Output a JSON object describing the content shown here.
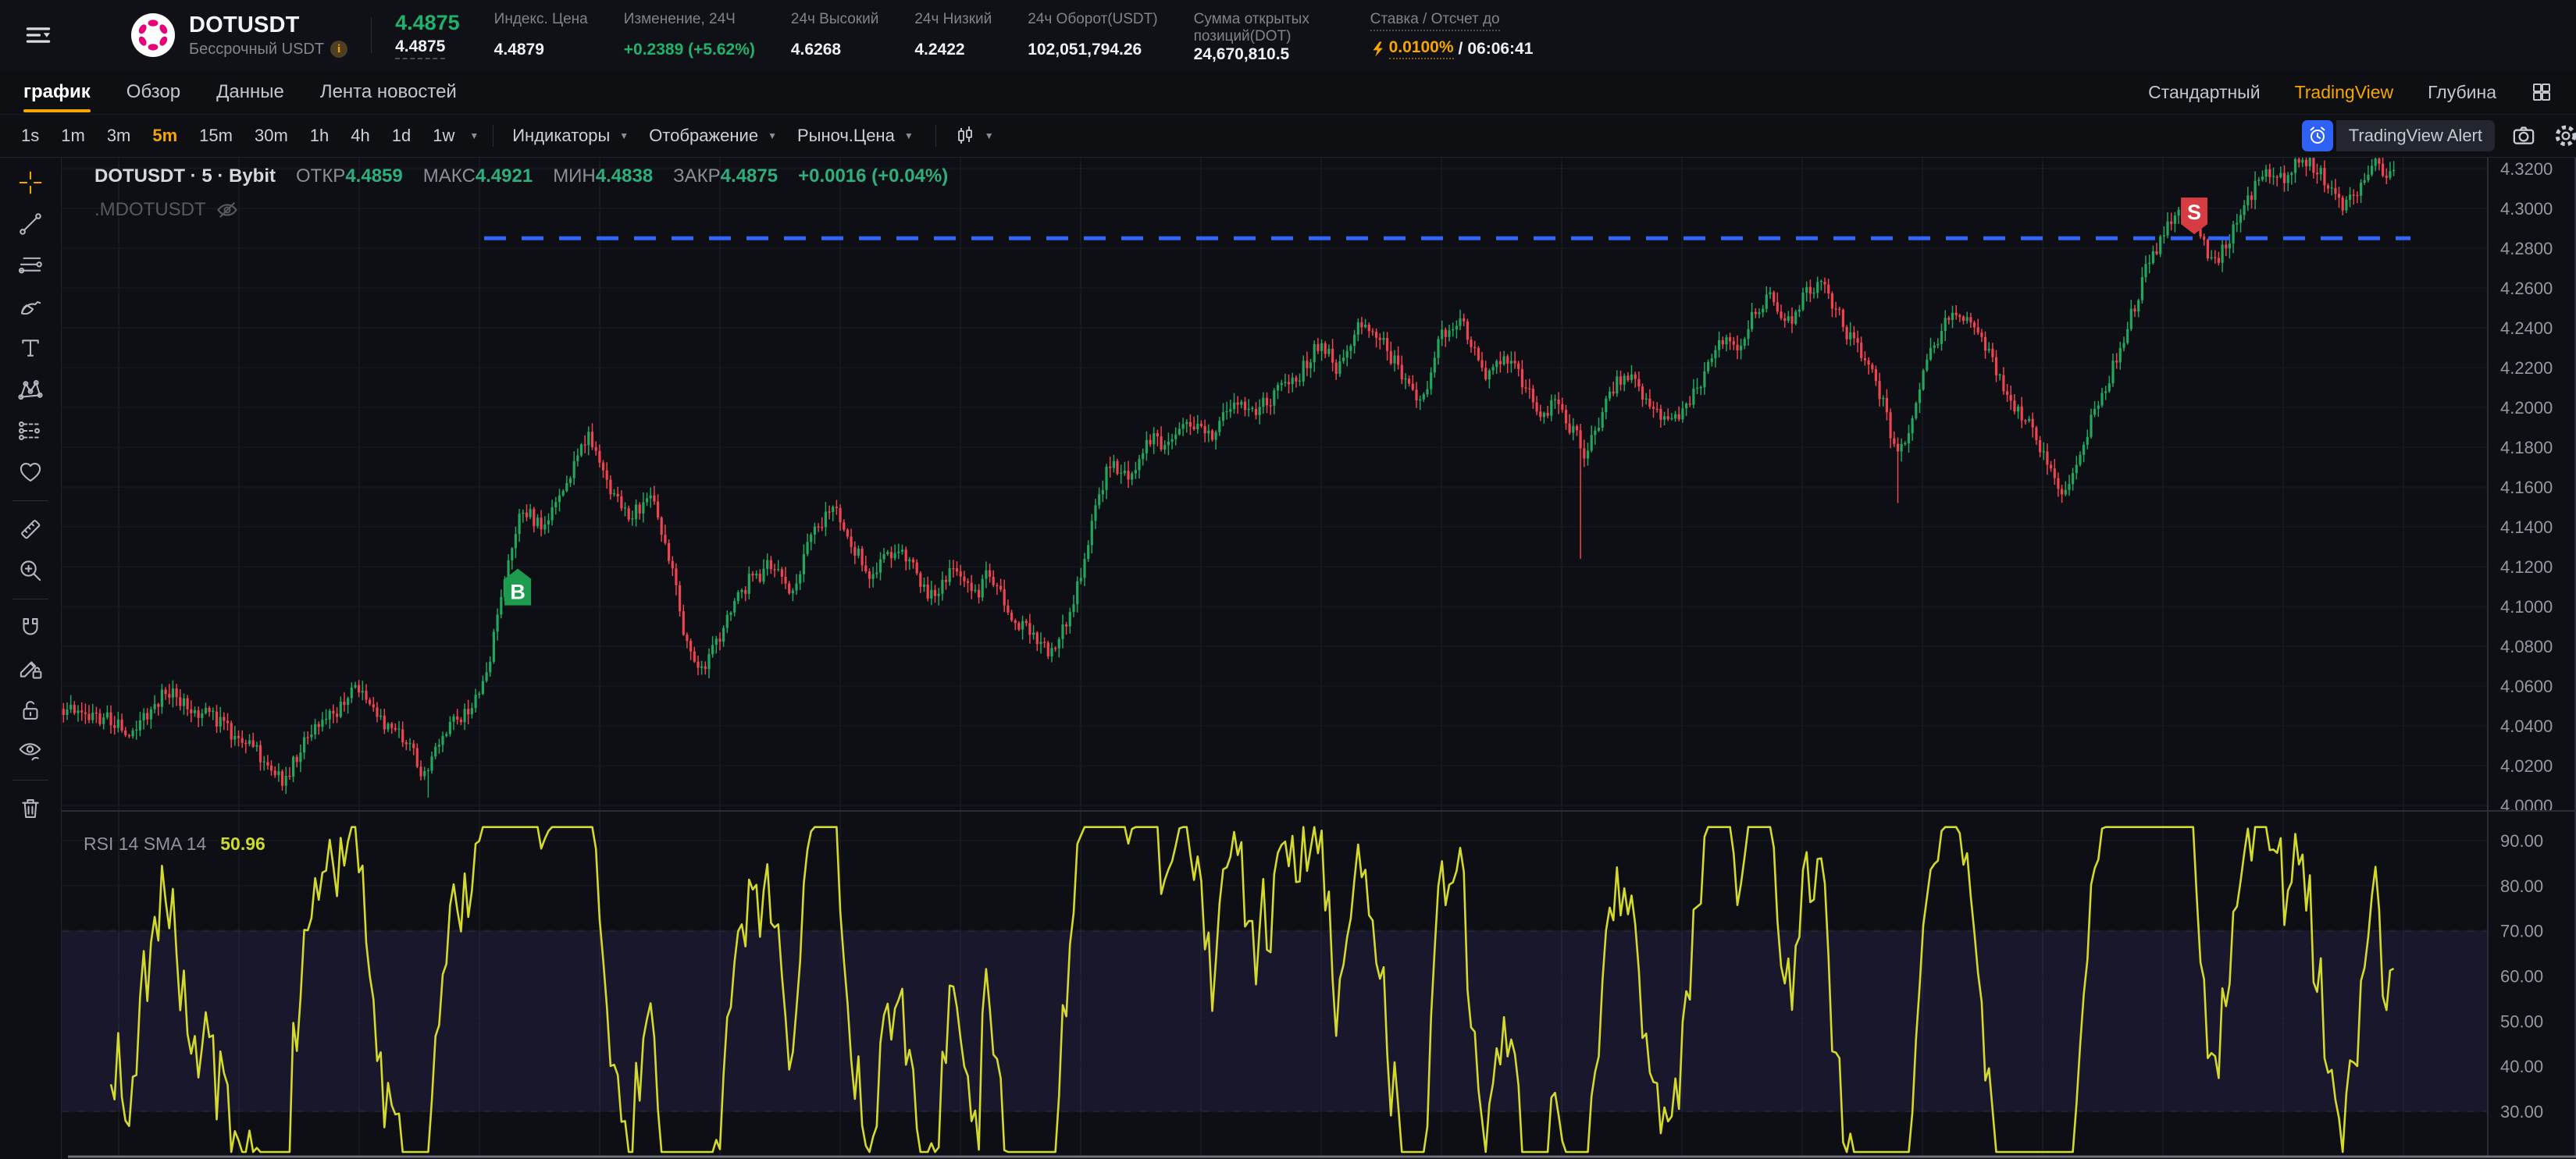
{
  "header": {
    "symbol": "DOTUSDT",
    "contract_label": "Бессрочный USDT",
    "last_price": "4.4875",
    "mark_price": "4.4875",
    "stats": [
      {
        "label": "Индекс. Цена",
        "value": "4.4879"
      },
      {
        "label": "Изменение, 24Ч",
        "value": "+0.2389 (+5.62%)"
      },
      {
        "label": "24ч Высокий",
        "value": "4.6268"
      },
      {
        "label": "24ч Низкий",
        "value": "4.2422"
      },
      {
        "label": "24ч Оборот(USDT)",
        "value": "102,051,794.26"
      },
      {
        "label": "Сумма открытых позиций(DOT)",
        "value": "24,670,810.5"
      }
    ],
    "funding": {
      "label": "Ставка / Отсчет до",
      "rate": "0.0100%",
      "separator": "/",
      "countdown": "06:06:41"
    }
  },
  "nav": {
    "tabs": [
      "график",
      "Обзор",
      "Данные",
      "Лента новостей"
    ],
    "active_tab": "график",
    "right_links": [
      "Стандартный",
      "TradingView",
      "Глубина"
    ],
    "accent_link": "TradingView"
  },
  "toolbar": {
    "timeframes": [
      "1s",
      "1m",
      "3m",
      "5m",
      "15m",
      "30m",
      "1h",
      "4h",
      "1d",
      "1w"
    ],
    "active_timeframe": "5m",
    "menus": [
      "Индикаторы",
      "Отображение",
      "Рыноч.Цена"
    ],
    "alert_label": "TradingView Alert"
  },
  "legend": {
    "title": "DOTUSDT · 5 · Bybit",
    "items": [
      {
        "label": "ОТКР",
        "value": "4.4859"
      },
      {
        "label": "МАКС",
        "value": "4.4921"
      },
      {
        "label": "МИН",
        "value": "4.4838"
      },
      {
        "label": "ЗАКР",
        "value": "4.4875"
      }
    ],
    "change": "+0.0016 (+0.04%)",
    "hidden_series": ".MDOTUSDT"
  },
  "rsi_legend": {
    "label": "RSI 14 SMA 14",
    "value": "50.96"
  },
  "chart_data": {
    "type": "candlestick",
    "symbol": "DOTUSDT",
    "interval": "5m",
    "exchange": "Bybit",
    "price_axis": {
      "min": 3.9973,
      "max": 4.3255,
      "ticks": [
        "4.3200",
        "4.3000",
        "4.2800",
        "4.2600",
        "4.2400",
        "4.2200",
        "4.2000",
        "4.1800",
        "4.1600",
        "4.1400",
        "4.1200",
        "4.1000",
        "4.0800",
        "4.0600",
        "4.0400",
        "4.0200",
        "4.0000"
      ]
    },
    "rsi_axis": {
      "ticks": [
        "90.00",
        "80.00",
        "70.00",
        "60.00",
        "50.00",
        "40.00",
        "30.00"
      ],
      "band": [
        30,
        70
      ],
      "current": 50.96
    },
    "price_path": [
      [
        0.005,
        4.05
      ],
      [
        0.026,
        4.038
      ],
      [
        0.043,
        4.058
      ],
      [
        0.063,
        4.042
      ],
      [
        0.078,
        4.028
      ],
      [
        0.09,
        4.012
      ],
      [
        0.099,
        4.032
      ],
      [
        0.11,
        4.045
      ],
      [
        0.121,
        4.062
      ],
      [
        0.132,
        4.042
      ],
      [
        0.142,
        4.028
      ],
      [
        0.15,
        4.012
      ],
      [
        0.156,
        4.04
      ],
      [
        0.167,
        4.048
      ],
      [
        0.175,
        4.07
      ],
      [
        0.182,
        4.118
      ],
      [
        0.188,
        4.15
      ],
      [
        0.197,
        4.14
      ],
      [
        0.207,
        4.162
      ],
      [
        0.217,
        4.186
      ],
      [
        0.224,
        4.162
      ],
      [
        0.234,
        4.146
      ],
      [
        0.242,
        4.155
      ],
      [
        0.249,
        4.128
      ],
      [
        0.255,
        4.09
      ],
      [
        0.264,
        4.066
      ],
      [
        0.273,
        4.092
      ],
      [
        0.283,
        4.114
      ],
      [
        0.292,
        4.12
      ],
      [
        0.3,
        4.104
      ],
      [
        0.308,
        4.138
      ],
      [
        0.317,
        4.15
      ],
      [
        0.325,
        4.13
      ],
      [
        0.334,
        4.116
      ],
      [
        0.341,
        4.13
      ],
      [
        0.35,
        4.118
      ],
      [
        0.358,
        4.104
      ],
      [
        0.367,
        4.12
      ],
      [
        0.375,
        4.104
      ],
      [
        0.382,
        4.116
      ],
      [
        0.39,
        4.098
      ],
      [
        0.399,
        4.084
      ],
      [
        0.407,
        4.074
      ],
      [
        0.414,
        4.092
      ],
      [
        0.421,
        4.122
      ],
      [
        0.426,
        4.152
      ],
      [
        0.431,
        4.172
      ],
      [
        0.44,
        4.164
      ],
      [
        0.447,
        4.186
      ],
      [
        0.456,
        4.178
      ],
      [
        0.464,
        4.196
      ],
      [
        0.474,
        4.186
      ],
      [
        0.483,
        4.202
      ],
      [
        0.492,
        4.194
      ],
      [
        0.501,
        4.212
      ],
      [
        0.51,
        4.218
      ],
      [
        0.518,
        4.232
      ],
      [
        0.526,
        4.22
      ],
      [
        0.534,
        4.246
      ],
      [
        0.541,
        4.238
      ],
      [
        0.549,
        4.224
      ],
      [
        0.556,
        4.208
      ],
      [
        0.562,
        4.204
      ],
      [
        0.568,
        4.236
      ],
      [
        0.575,
        4.246
      ],
      [
        0.582,
        4.226
      ],
      [
        0.589,
        4.214
      ],
      [
        0.595,
        4.226
      ],
      [
        0.602,
        4.21
      ],
      [
        0.609,
        4.196
      ],
      [
        0.616,
        4.206
      ],
      [
        0.623,
        4.188
      ],
      [
        0.627,
        4.176
      ],
      [
        0.635,
        4.198
      ],
      [
        0.642,
        4.214
      ],
      [
        0.649,
        4.212
      ],
      [
        0.656,
        4.198
      ],
      [
        0.663,
        4.194
      ],
      [
        0.67,
        4.202
      ],
      [
        0.677,
        4.216
      ],
      [
        0.684,
        4.236
      ],
      [
        0.69,
        4.226
      ],
      [
        0.697,
        4.246
      ],
      [
        0.704,
        4.256
      ],
      [
        0.711,
        4.24
      ],
      [
        0.717,
        4.254
      ],
      [
        0.724,
        4.262
      ],
      [
        0.731,
        4.25
      ],
      [
        0.738,
        4.234
      ],
      [
        0.745,
        4.218
      ],
      [
        0.751,
        4.204
      ],
      [
        0.755,
        4.176
      ],
      [
        0.762,
        4.192
      ],
      [
        0.768,
        4.222
      ],
      [
        0.775,
        4.24
      ],
      [
        0.782,
        4.252
      ],
      [
        0.789,
        4.24
      ],
      [
        0.795,
        4.224
      ],
      [
        0.802,
        4.208
      ],
      [
        0.809,
        4.194
      ],
      [
        0.816,
        4.18
      ],
      [
        0.822,
        4.164
      ],
      [
        0.827,
        4.154
      ],
      [
        0.833,
        4.182
      ],
      [
        0.839,
        4.202
      ],
      [
        0.846,
        4.222
      ],
      [
        0.853,
        4.246
      ],
      [
        0.86,
        4.27
      ],
      [
        0.866,
        4.286
      ],
      [
        0.873,
        4.296
      ],
      [
        0.879,
        4.302
      ],
      [
        0.883,
        4.28
      ],
      [
        0.888,
        4.27
      ],
      [
        0.893,
        4.286
      ],
      [
        0.898,
        4.296
      ],
      [
        0.904,
        4.31
      ],
      [
        0.91,
        4.32
      ],
      [
        0.917,
        4.314
      ],
      [
        0.924,
        4.326
      ],
      [
        0.931,
        4.318
      ],
      [
        0.938,
        4.304
      ],
      [
        0.943,
        4.3
      ],
      [
        0.948,
        4.314
      ],
      [
        0.952,
        4.324
      ],
      [
        0.96,
        4.317
      ]
    ],
    "spikes": [
      {
        "f": 0.627,
        "low": 4.124
      },
      {
        "f": 0.15,
        "low": 4.004
      },
      {
        "f": 0.757,
        "low": 4.152
      }
    ],
    "buy_marker": {
      "f": 0.188,
      "price": 4.119,
      "label": "B"
    },
    "sell_marker": {
      "f": 0.879,
      "price": 4.287,
      "label": "S"
    },
    "dashed_line": {
      "price": 4.285,
      "from": 0.174,
      "to": 0.968
    },
    "n_candles": 640,
    "right_fraction": 0.962,
    "colors": {
      "up": "#23a55e",
      "down": "#ee4450",
      "rsi": "#d3da2b",
      "band": "rgba(130,102,255,0.10)",
      "band_border": "#4a4668",
      "dashed_line": "#2e66f6",
      "buy": "#1d9c50",
      "sell": "#d63c41",
      "grid": "#171a20",
      "vgrid": "#1a1d24",
      "axis_text": "#9598a1",
      "separator": "#2a2d38",
      "bottom_separator": "#6f727b",
      "background": "#0e0f14"
    }
  }
}
